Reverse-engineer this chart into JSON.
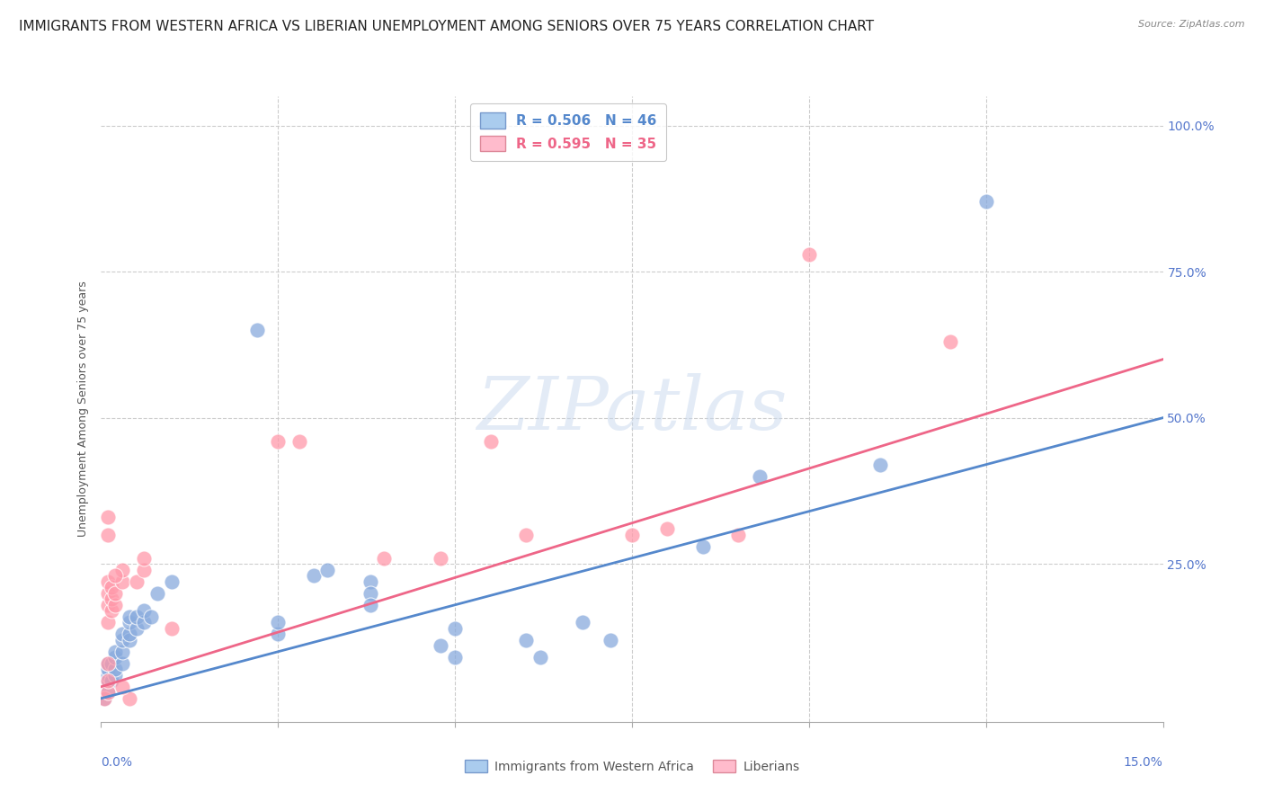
{
  "title": "IMMIGRANTS FROM WESTERN AFRICA VS LIBERIAN UNEMPLOYMENT AMONG SENIORS OVER 75 YEARS CORRELATION CHART",
  "source": "Source: ZipAtlas.com",
  "ylabel": "Unemployment Among Seniors over 75 years",
  "ytick_labels": [
    "25.0%",
    "50.0%",
    "75.0%",
    "100.0%"
  ],
  "ytick_values": [
    0.25,
    0.5,
    0.75,
    1.0
  ],
  "xlim": [
    0,
    0.15
  ],
  "ylim": [
    -0.02,
    1.05
  ],
  "ymin": 0,
  "ymax": 1.0,
  "legend_entries": [
    {
      "label": "R = 0.506   N = 46",
      "color": "#5588cc"
    },
    {
      "label": "R = 0.595   N = 35",
      "color": "#ee6688"
    }
  ],
  "legend_bottom": [
    {
      "label": "Immigrants from Western Africa",
      "color": "#aaccee"
    },
    {
      "label": "Liberians",
      "color": "#ffaabb"
    }
  ],
  "blue_scatter": [
    [
      0.0005,
      0.02
    ],
    [
      0.001,
      0.03
    ],
    [
      0.001,
      0.05
    ],
    [
      0.001,
      0.06
    ],
    [
      0.001,
      0.07
    ],
    [
      0.001,
      0.08
    ],
    [
      0.0015,
      0.05
    ],
    [
      0.0015,
      0.08
    ],
    [
      0.002,
      0.06
    ],
    [
      0.002,
      0.07
    ],
    [
      0.002,
      0.09
    ],
    [
      0.002,
      0.1
    ],
    [
      0.003,
      0.08
    ],
    [
      0.003,
      0.1
    ],
    [
      0.003,
      0.12
    ],
    [
      0.003,
      0.13
    ],
    [
      0.004,
      0.12
    ],
    [
      0.004,
      0.13
    ],
    [
      0.004,
      0.15
    ],
    [
      0.004,
      0.16
    ],
    [
      0.005,
      0.14
    ],
    [
      0.005,
      0.16
    ],
    [
      0.006,
      0.15
    ],
    [
      0.006,
      0.17
    ],
    [
      0.007,
      0.16
    ],
    [
      0.008,
      0.2
    ],
    [
      0.01,
      0.22
    ],
    [
      0.022,
      0.65
    ],
    [
      0.025,
      0.13
    ],
    [
      0.025,
      0.15
    ],
    [
      0.03,
      0.23
    ],
    [
      0.032,
      0.24
    ],
    [
      0.038,
      0.22
    ],
    [
      0.038,
      0.2
    ],
    [
      0.038,
      0.18
    ],
    [
      0.048,
      0.11
    ],
    [
      0.05,
      0.09
    ],
    [
      0.05,
      0.14
    ],
    [
      0.06,
      0.12
    ],
    [
      0.062,
      0.09
    ],
    [
      0.068,
      0.15
    ],
    [
      0.072,
      0.12
    ],
    [
      0.085,
      0.28
    ],
    [
      0.093,
      0.4
    ],
    [
      0.11,
      0.42
    ],
    [
      0.125,
      0.87
    ]
  ],
  "pink_scatter": [
    [
      0.0005,
      0.02
    ],
    [
      0.001,
      0.03
    ],
    [
      0.001,
      0.05
    ],
    [
      0.001,
      0.15
    ],
    [
      0.001,
      0.18
    ],
    [
      0.001,
      0.2
    ],
    [
      0.001,
      0.22
    ],
    [
      0.001,
      0.3
    ],
    [
      0.001,
      0.33
    ],
    [
      0.0015,
      0.17
    ],
    [
      0.0015,
      0.19
    ],
    [
      0.0015,
      0.21
    ],
    [
      0.002,
      0.18
    ],
    [
      0.002,
      0.2
    ],
    [
      0.003,
      0.22
    ],
    [
      0.004,
      0.02
    ],
    [
      0.005,
      0.22
    ],
    [
      0.006,
      0.24
    ],
    [
      0.006,
      0.26
    ],
    [
      0.01,
      0.14
    ],
    [
      0.025,
      0.46
    ],
    [
      0.028,
      0.46
    ],
    [
      0.04,
      0.26
    ],
    [
      0.048,
      0.26
    ],
    [
      0.055,
      0.46
    ],
    [
      0.06,
      0.3
    ],
    [
      0.075,
      0.3
    ],
    [
      0.08,
      0.31
    ],
    [
      0.09,
      0.3
    ],
    [
      0.1,
      0.78
    ],
    [
      0.12,
      0.63
    ],
    [
      0.003,
      0.24
    ],
    [
      0.002,
      0.23
    ],
    [
      0.001,
      0.08
    ],
    [
      0.003,
      0.04
    ]
  ],
  "blue_line_x": [
    0,
    0.15
  ],
  "blue_line_y": [
    0.02,
    0.5
  ],
  "pink_line_x": [
    0,
    0.15
  ],
  "pink_line_y": [
    0.04,
    0.6
  ],
  "blue_color": "#5588cc",
  "pink_color": "#ee6688",
  "scatter_blue_color": "#88aadd",
  "scatter_pink_color": "#ff99aa",
  "background_color": "#ffffff",
  "grid_color": "#cccccc",
  "axis_color": "#5577cc",
  "ylabel_color": "#555555",
  "watermark_text": "ZIPatlas",
  "watermark_color": "#c8d8ee",
  "title_fontsize": 11,
  "axis_label_fontsize": 9,
  "tick_fontsize": 10
}
